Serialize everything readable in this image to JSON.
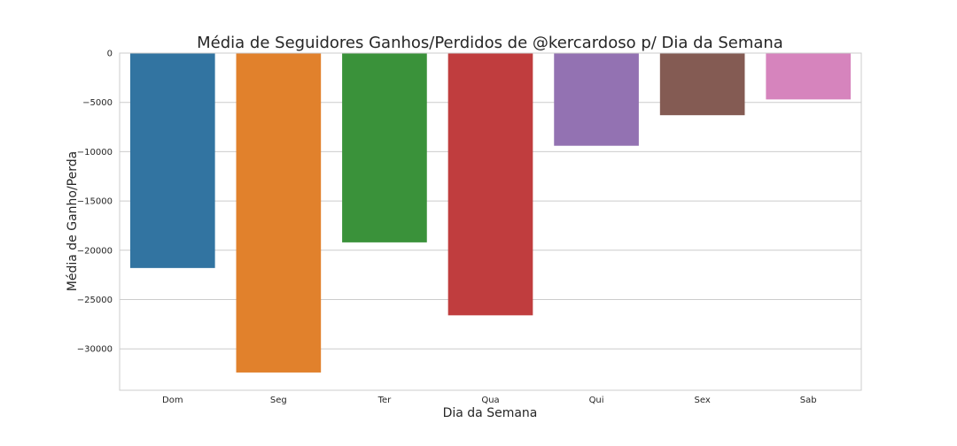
{
  "chart_data": {
    "type": "bar",
    "title": "Média de Seguidores Ganhos/Perdidos de @kercardoso p/ Dia da Semana",
    "xlabel": "Dia da Semana",
    "ylabel": "Média de Ganho/Perda",
    "categories": [
      "Dom",
      "Seg",
      "Ter",
      "Qua",
      "Qui",
      "Sex",
      "Sab"
    ],
    "values": [
      -21800,
      -32400,
      -19200,
      -26600,
      -9400,
      -6300,
      -4700
    ],
    "colors": [
      "#3274a1",
      "#e1812c",
      "#3a923a",
      "#c03d3e",
      "#9372b2",
      "#845b53",
      "#d684bd"
    ],
    "ylim": [
      -34200,
      0
    ],
    "yticks": [
      0,
      -5000,
      -10000,
      -15000,
      -20000,
      -25000,
      -30000
    ],
    "grid": true,
    "legend": "none"
  }
}
